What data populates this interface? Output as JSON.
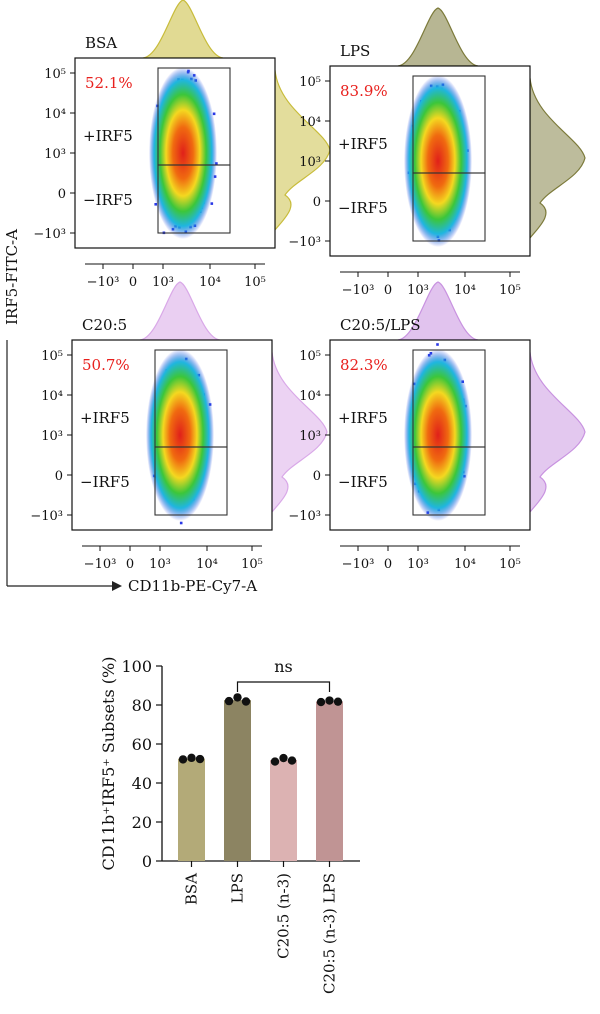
{
  "flow": {
    "y_axis_label": "IRF5-FITC-A",
    "x_axis_label": "CD11b-PE-Cy7-A",
    "x_ticks": [
      "−10³",
      "0",
      "10³",
      "10⁴",
      "10⁵"
    ],
    "y_ticks": [
      "10⁵",
      "10⁴",
      "10³",
      "0",
      "−10³"
    ],
    "gate_upper_label": "+IRF5",
    "gate_lower_label": "−IRF5",
    "percent_color": "#e8201d",
    "panels": [
      {
        "title": "BSA",
        "percent": "52.1%",
        "histogram_color": "#c8bc3a"
      },
      {
        "title": "LPS",
        "percent": "83.9%",
        "histogram_color": "#7c7a3a"
      },
      {
        "title": "C20:5",
        "percent": "50.7%",
        "histogram_color": "#d9a8e8"
      },
      {
        "title": "C20:5/LPS",
        "percent": "82.3%",
        "histogram_color": "#c892e0"
      }
    ]
  },
  "chart_data": {
    "type": "bar",
    "title": "",
    "xlabel": "",
    "ylabel": "CD11b⁺IRF5⁺ Subsets (%)",
    "ylim": [
      0,
      100
    ],
    "y_ticks": [
      0,
      20,
      40,
      60,
      80,
      100
    ],
    "categories": [
      "BSA",
      "LPS",
      "C20:5 (n-3)",
      "C20:5 (n-3) LPS"
    ],
    "values": [
      52.5,
      82.5,
      51.8,
      81.8
    ],
    "points": [
      [
        52.1,
        52.9,
        52.3
      ],
      [
        82.0,
        83.9,
        81.8
      ],
      [
        51.0,
        52.8,
        51.5
      ],
      [
        81.5,
        82.3,
        81.7
      ]
    ],
    "colors": [
      "#b3aa78",
      "#8c8462",
      "#dcb2b2",
      "#c09494"
    ],
    "significance": {
      "from": 1,
      "to": 3,
      "label": "ns"
    },
    "grid": false
  }
}
